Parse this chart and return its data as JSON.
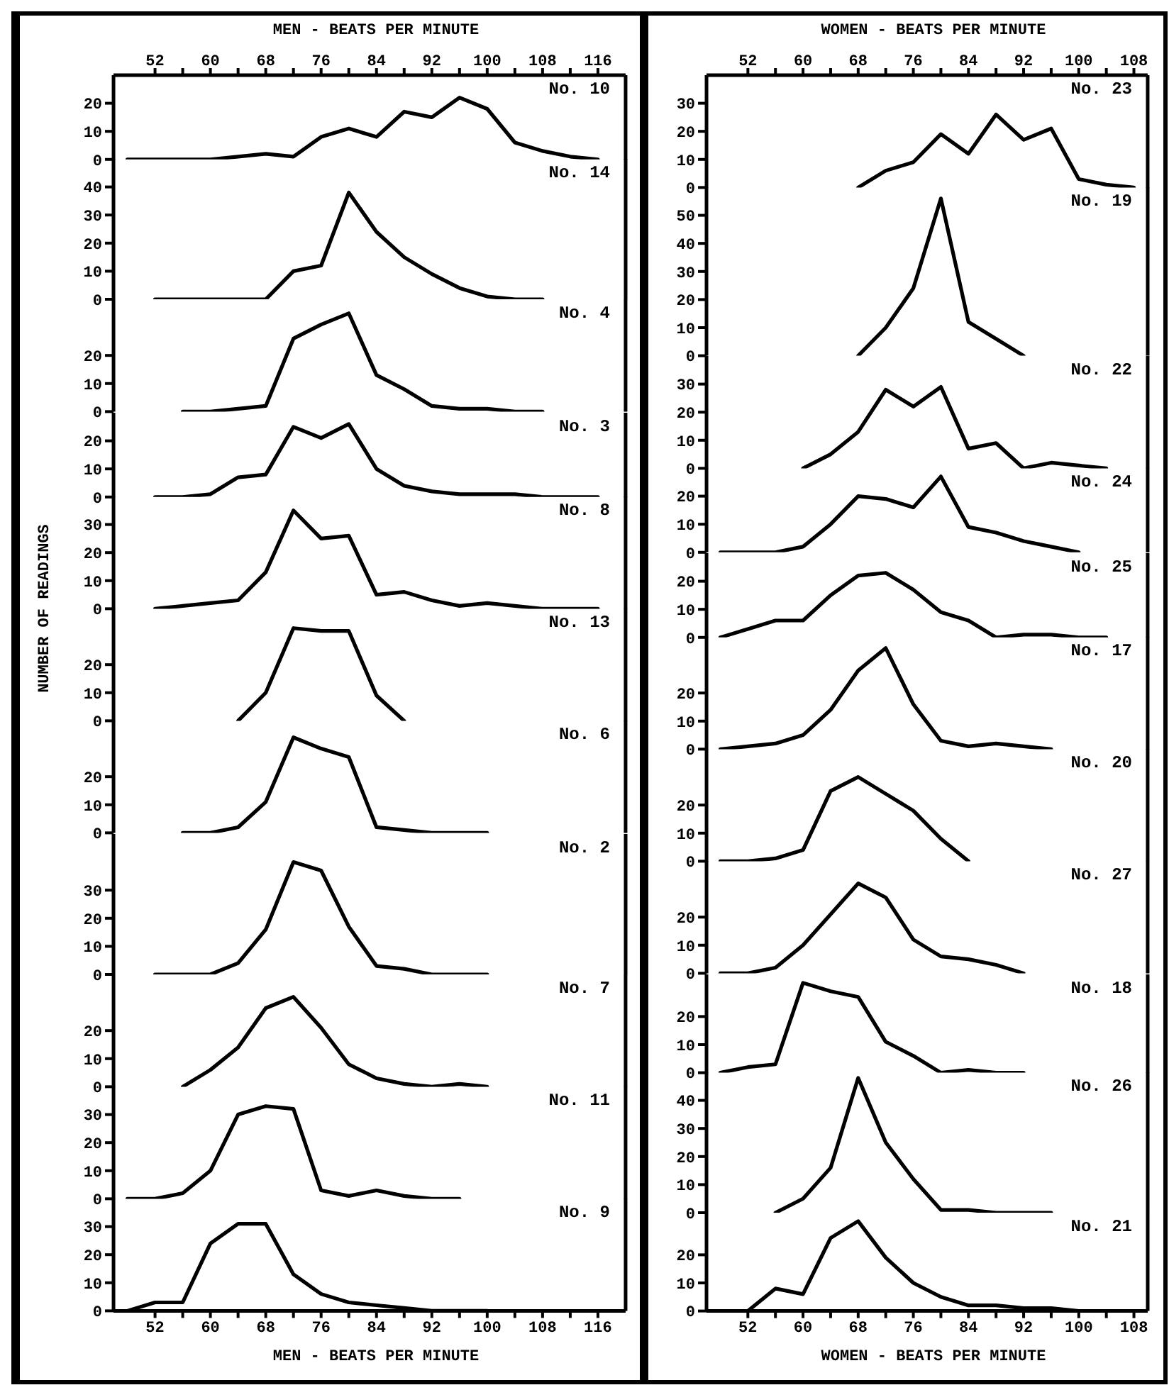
{
  "chart_data": [
    {
      "type": "line",
      "title": "No. 10",
      "color": "#000000",
      "x": [
        48,
        52,
        56,
        60,
        64,
        68,
        72,
        76,
        80,
        84,
        88,
        92,
        96,
        100,
        104,
        108,
        112,
        116
      ],
      "values": [
        0,
        0,
        0,
        0,
        1,
        2,
        1,
        8,
        11,
        8,
        17,
        15,
        22,
        18,
        6,
        3,
        1,
        0
      ],
      "xlim": [
        46,
        120
      ],
      "ylim": [
        0,
        30
      ],
      "yticks": [
        0,
        10,
        20
      ],
      "tick_labels": "y",
      "x2lim": [
        46,
        120
      ],
      "x2label": "MEN - BEATS PER MINUTE",
      "x2ticks": [
        {
          "value": 52,
          "label": "52"
        },
        {
          "value": 56,
          "label": null
        },
        {
          "value": 60,
          "label": "60"
        },
        {
          "value": 64,
          "label": null
        },
        {
          "value": 68,
          "label": "68"
        },
        {
          "value": 72,
          "label": null
        },
        {
          "value": 76,
          "label": "76"
        },
        {
          "value": 80,
          "label": null
        },
        {
          "value": 84,
          "label": "84"
        },
        {
          "value": 88,
          "label": null
        },
        {
          "value": 92,
          "label": "92"
        },
        {
          "value": 96,
          "label": null
        },
        {
          "value": 100,
          "label": "100"
        },
        {
          "value": 104,
          "label": null
        },
        {
          "value": 108,
          "label": "108"
        },
        {
          "value": 112,
          "label": null
        },
        {
          "value": 116,
          "label": "116"
        }
      ]
    },
    {
      "type": "line",
      "title": "No. 14",
      "color": "#000000",
      "x": [
        52,
        56,
        60,
        64,
        68,
        72,
        76,
        80,
        84,
        88,
        92,
        96,
        100,
        104,
        108
      ],
      "values": [
        0,
        0,
        0,
        0,
        0,
        10,
        12,
        38,
        24,
        15,
        9,
        4,
        1,
        0,
        0
      ],
      "xlim": [
        46,
        120
      ],
      "ylim": [
        0,
        50
      ],
      "yticks": [
        0,
        10,
        20,
        30,
        40
      ],
      "tick_labels": "y"
    },
    {
      "type": "line",
      "title": "No. 4",
      "color": "#000000",
      "x": [
        56,
        60,
        64,
        68,
        72,
        76,
        80,
        84,
        88,
        92,
        96,
        100,
        104,
        108
      ],
      "values": [
        0,
        0,
        1,
        2,
        26,
        31,
        35,
        13,
        8,
        2,
        1,
        1,
        0,
        0
      ],
      "xlim": [
        46,
        120
      ],
      "ylim": [
        0,
        40
      ],
      "yticks": [
        0,
        10,
        20
      ],
      "tick_labels": "y"
    },
    {
      "type": "line",
      "title": "No. 3",
      "color": "#000000",
      "x": [
        52,
        56,
        60,
        64,
        68,
        72,
        76,
        80,
        84,
        88,
        92,
        96,
        100,
        104,
        108,
        112,
        116
      ],
      "values": [
        0,
        0,
        1,
        7,
        8,
        25,
        21,
        26,
        10,
        4,
        2,
        1,
        1,
        1,
        0,
        0,
        0
      ],
      "xlim": [
        46,
        120
      ],
      "ylim": [
        0,
        30
      ],
      "yticks": [
        0,
        10,
        20
      ],
      "tick_labels": "y"
    },
    {
      "type": "line",
      "title": "No. 8",
      "color": "#000000",
      "ylabel": "NUMBER OF READINGS",
      "x": [
        52,
        56,
        60,
        64,
        68,
        72,
        76,
        80,
        84,
        88,
        92,
        96,
        100,
        104,
        108,
        112,
        116
      ],
      "values": [
        0,
        1,
        2,
        3,
        13,
        35,
        25,
        26,
        5,
        6,
        3,
        1,
        2,
        1,
        0,
        0,
        0
      ],
      "xlim": [
        46,
        120
      ],
      "ylim": [
        0,
        40
      ],
      "yticks": [
        0,
        10,
        20,
        30
      ],
      "tick_labels": "y"
    },
    {
      "type": "line",
      "title": "No. 13",
      "color": "#000000",
      "x": [
        64,
        68,
        72,
        76,
        80,
        84,
        88
      ],
      "values": [
        0,
        10,
        33,
        32,
        32,
        9,
        0
      ],
      "xlim": [
        46,
        120
      ],
      "ylim": [
        0,
        40
      ],
      "yticks": [
        0,
        10,
        20
      ],
      "tick_labels": "y"
    },
    {
      "type": "line",
      "title": "No. 6",
      "color": "#000000",
      "x": [
        56,
        60,
        64,
        68,
        72,
        76,
        80,
        84,
        88,
        92,
        96,
        100
      ],
      "values": [
        0,
        0,
        2,
        11,
        34,
        30,
        27,
        2,
        1,
        0,
        0,
        0
      ],
      "xlim": [
        46,
        120
      ],
      "ylim": [
        0,
        40
      ],
      "yticks": [
        0,
        10,
        20
      ],
      "tick_labels": "y"
    },
    {
      "type": "line",
      "title": "No. 2",
      "color": "#000000",
      "x": [
        52,
        56,
        60,
        64,
        68,
        72,
        76,
        80,
        84,
        88,
        92,
        96,
        100
      ],
      "values": [
        0,
        0,
        0,
        4,
        16,
        40,
        37,
        17,
        3,
        2,
        0,
        0,
        0
      ],
      "xlim": [
        46,
        120
      ],
      "ylim": [
        0,
        50
      ],
      "yticks": [
        0,
        10,
        20,
        30
      ],
      "tick_labels": "y"
    },
    {
      "type": "line",
      "title": "No. 7",
      "color": "#000000",
      "x": [
        56,
        60,
        64,
        68,
        72,
        76,
        80,
        84,
        88,
        92,
        96,
        100
      ],
      "values": [
        0,
        6,
        14,
        28,
        32,
        21,
        8,
        3,
        1,
        0,
        1,
        0
      ],
      "xlim": [
        46,
        120
      ],
      "ylim": [
        0,
        40
      ],
      "yticks": [
        0,
        10,
        20
      ],
      "tick_labels": "y"
    },
    {
      "type": "line",
      "title": "No. 11",
      "color": "#000000",
      "x": [
        48,
        52,
        56,
        60,
        64,
        68,
        72,
        76,
        80,
        84,
        88,
        92,
        96
      ],
      "values": [
        0,
        0,
        2,
        10,
        30,
        33,
        32,
        3,
        1,
        3,
        1,
        0,
        0
      ],
      "xlim": [
        46,
        120
      ],
      "ylim": [
        0,
        40
      ],
      "yticks": [
        0,
        10,
        20,
        30
      ],
      "tick_labels": "y"
    },
    {
      "type": "line",
      "title": "No. 9",
      "color": "#000000",
      "x": [
        48,
        52,
        56,
        60,
        64,
        68,
        72,
        76,
        80,
        84,
        88,
        92,
        96,
        100
      ],
      "values": [
        0,
        3,
        3,
        24,
        31,
        31,
        13,
        6,
        3,
        2,
        1,
        0,
        0,
        0
      ],
      "xlim": [
        46,
        120
      ],
      "ylim": [
        0,
        40
      ],
      "yticks": [
        0,
        10,
        20,
        30
      ],
      "xlabel": "MEN - BEATS PER MINUTE",
      "xticks": [
        {
          "value": 52,
          "label": "52"
        },
        {
          "value": 56,
          "label": null
        },
        {
          "value": 60,
          "label": "60"
        },
        {
          "value": 64,
          "label": null
        },
        {
          "value": 68,
          "label": "68"
        },
        {
          "value": 72,
          "label": null
        },
        {
          "value": 76,
          "label": "76"
        },
        {
          "value": 80,
          "label": null
        },
        {
          "value": 84,
          "label": "84"
        },
        {
          "value": 88,
          "label": null
        },
        {
          "value": 92,
          "label": "92"
        },
        {
          "value": 96,
          "label": null
        },
        {
          "value": 100,
          "label": "100"
        },
        {
          "value": 104,
          "label": null
        },
        {
          "value": 108,
          "label": "108"
        },
        {
          "value": 112,
          "label": null
        },
        {
          "value": 116,
          "label": "116"
        }
      ]
    },
    {
      "type": "line",
      "title": "No. 23",
      "color": "#000000",
      "x": [
        68,
        72,
        76,
        80,
        84,
        88,
        92,
        96,
        100,
        104,
        108
      ],
      "values": [
        0,
        6,
        9,
        19,
        12,
        26,
        17,
        21,
        3,
        1,
        0
      ],
      "xlim": [
        46,
        110
      ],
      "ylim": [
        0,
        40
      ],
      "yticks": [
        0,
        10,
        20,
        30
      ],
      "tick_labels": "y",
      "x2lim": [
        46,
        110
      ],
      "x2label": "WOMEN - BEATS PER MINUTE",
      "x2ticks": [
        {
          "value": 52,
          "label": "52"
        },
        {
          "value": 56,
          "label": null
        },
        {
          "value": 60,
          "label": "60"
        },
        {
          "value": 64,
          "label": null
        },
        {
          "value": 68,
          "label": "68"
        },
        {
          "value": 72,
          "label": null
        },
        {
          "value": 76,
          "label": "76"
        },
        {
          "value": 80,
          "label": null
        },
        {
          "value": 84,
          "label": "84"
        },
        {
          "value": 88,
          "label": null
        },
        {
          "value": 92,
          "label": "92"
        },
        {
          "value": 96,
          "label": null
        },
        {
          "value": 100,
          "label": "100"
        },
        {
          "value": 104,
          "label": null
        },
        {
          "value": 108,
          "label": "108"
        }
      ]
    },
    {
      "type": "line",
      "title": "No. 19",
      "color": "#000000",
      "x": [
        68,
        72,
        76,
        80,
        84,
        88,
        92
      ],
      "values": [
        0,
        10,
        24,
        56,
        12,
        6,
        0
      ],
      "xlim": [
        46,
        110
      ],
      "ylim": [
        0,
        60
      ],
      "yticks": [
        0,
        10,
        20,
        30,
        40,
        50
      ],
      "tick_labels": "y"
    },
    {
      "type": "line",
      "title": "No. 22",
      "color": "#000000",
      "x": [
        60,
        64,
        68,
        72,
        76,
        80,
        84,
        88,
        92,
        96,
        100,
        104
      ],
      "values": [
        0,
        5,
        13,
        28,
        22,
        29,
        7,
        9,
        0,
        2,
        1,
        0
      ],
      "xlim": [
        46,
        110
      ],
      "ylim": [
        0,
        40
      ],
      "yticks": [
        0,
        10,
        20,
        30
      ],
      "tick_labels": "y"
    },
    {
      "type": "line",
      "title": "No. 24",
      "color": "#000000",
      "x": [
        48,
        52,
        56,
        60,
        64,
        68,
        72,
        76,
        80,
        84,
        88,
        92,
        96,
        100
      ],
      "values": [
        0,
        0,
        0,
        2,
        10,
        20,
        19,
        16,
        27,
        9,
        7,
        4,
        2,
        0
      ],
      "xlim": [
        46,
        110
      ],
      "ylim": [
        0,
        30
      ],
      "yticks": [
        0,
        10,
        20
      ],
      "tick_labels": "y"
    },
    {
      "type": "line",
      "title": "No. 25",
      "color": "#000000",
      "x": [
        48,
        52,
        56,
        60,
        64,
        68,
        72,
        76,
        80,
        84,
        88,
        92,
        96,
        100,
        104
      ],
      "values": [
        0,
        3,
        6,
        6,
        15,
        22,
        23,
        17,
        9,
        6,
        0,
        1,
        1,
        0,
        0
      ],
      "xlim": [
        46,
        110
      ],
      "ylim": [
        0,
        30
      ],
      "yticks": [
        0,
        10,
        20
      ],
      "tick_labels": "y"
    },
    {
      "type": "line",
      "title": "No. 17",
      "color": "#000000",
      "x": [
        48,
        52,
        56,
        60,
        64,
        68,
        72,
        76,
        80,
        84,
        88,
        92,
        96
      ],
      "values": [
        0,
        1,
        2,
        5,
        14,
        28,
        36,
        16,
        3,
        1,
        2,
        1,
        0
      ],
      "xlim": [
        46,
        110
      ],
      "ylim": [
        0,
        40
      ],
      "yticks": [
        0,
        10,
        20
      ],
      "tick_labels": "y"
    },
    {
      "type": "line",
      "title": "No. 20",
      "color": "#000000",
      "x": [
        48,
        52,
        56,
        60,
        64,
        68,
        72,
        76,
        80,
        84
      ],
      "values": [
        0,
        0,
        1,
        4,
        25,
        30,
        24,
        18,
        8,
        0
      ],
      "xlim": [
        46,
        110
      ],
      "ylim": [
        0,
        40
      ],
      "yticks": [
        0,
        10,
        20
      ],
      "tick_labels": "y"
    },
    {
      "type": "line",
      "title": "No. 27",
      "color": "#000000",
      "x": [
        48,
        52,
        56,
        60,
        64,
        68,
        72,
        76,
        80,
        84,
        88,
        92
      ],
      "values": [
        0,
        0,
        2,
        10,
        21,
        32,
        27,
        12,
        6,
        5,
        3,
        0
      ],
      "xlim": [
        46,
        110
      ],
      "ylim": [
        0,
        40
      ],
      "yticks": [
        0,
        10,
        20
      ],
      "tick_labels": "y"
    },
    {
      "type": "line",
      "title": "No. 18",
      "color": "#000000",
      "x": [
        48,
        52,
        56,
        60,
        64,
        68,
        72,
        76,
        80,
        84,
        88,
        92
      ],
      "values": [
        0,
        2,
        3,
        32,
        29,
        27,
        11,
        6,
        0,
        1,
        0,
        0
      ],
      "xlim": [
        46,
        110
      ],
      "ylim": [
        0,
        35
      ],
      "yticks": [
        0,
        10,
        20
      ],
      "tick_labels": "y"
    },
    {
      "type": "line",
      "title": "No. 26",
      "color": "#000000",
      "x": [
        56,
        60,
        64,
        68,
        72,
        76,
        80,
        84,
        88,
        92,
        96
      ],
      "values": [
        0,
        5,
        16,
        48,
        25,
        12,
        1,
        1,
        0,
        0,
        0
      ],
      "xlim": [
        46,
        110
      ],
      "ylim": [
        0,
        50
      ],
      "yticks": [
        0,
        10,
        20,
        30,
        40
      ],
      "tick_labels": "y"
    },
    {
      "type": "line",
      "title": "No. 21",
      "color": "#000000",
      "x": [
        52,
        56,
        60,
        64,
        68,
        72,
        76,
        80,
        84,
        88,
        92,
        96,
        100,
        104
      ],
      "values": [
        0,
        8,
        6,
        26,
        32,
        19,
        10,
        5,
        2,
        2,
        1,
        1,
        0,
        0
      ],
      "xlim": [
        46,
        110
      ],
      "ylim": [
        0,
        35
      ],
      "yticks": [
        0,
        10,
        20
      ],
      "xlabel": "WOMEN - BEATS PER MINUTE",
      "xticks": [
        {
          "value": 52,
          "label": "52"
        },
        {
          "value": 56,
          "label": null
        },
        {
          "value": 60,
          "label": "60"
        },
        {
          "value": 64,
          "label": null
        },
        {
          "value": 68,
          "label": "68"
        },
        {
          "value": 72,
          "label": null
        },
        {
          "value": 76,
          "label": "76"
        },
        {
          "value": 80,
          "label": null
        },
        {
          "value": 84,
          "label": "84"
        },
        {
          "value": 88,
          "label": null
        },
        {
          "value": 92,
          "label": "92"
        },
        {
          "value": 96,
          "label": null
        },
        {
          "value": 100,
          "label": "100"
        },
        {
          "value": 104,
          "label": null
        },
        {
          "value": 108,
          "label": "108"
        }
      ]
    }
  ]
}
